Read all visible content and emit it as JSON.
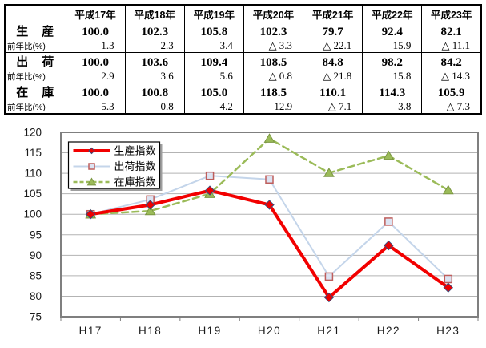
{
  "table": {
    "corner_label": "",
    "year_headers": [
      "平成17年",
      "平成18年",
      "平成19年",
      "平成20年",
      "平成21年",
      "平成22年",
      "平成23年"
    ],
    "yoy_label": "前年比(%)",
    "rows": [
      {
        "label": "生　産",
        "values": [
          "100.0",
          "102.3",
          "105.8",
          "102.3",
          "79.7",
          "92.4",
          "82.1"
        ],
        "yoy": [
          "1.3",
          "2.3",
          "3.4",
          "△ 3.3",
          "△ 22.1",
          "15.9",
          "△ 11.1"
        ]
      },
      {
        "label": "出　荷",
        "values": [
          "100.0",
          "103.6",
          "109.4",
          "108.5",
          "84.8",
          "98.2",
          "84.2"
        ],
        "yoy": [
          "2.9",
          "3.6",
          "5.6",
          "△ 0.8",
          "△ 21.8",
          "15.8",
          "△ 14.3"
        ]
      },
      {
        "label": "在　庫",
        "values": [
          "100.0",
          "100.8",
          "105.0",
          "118.5",
          "110.1",
          "114.3",
          "105.9"
        ],
        "yoy": [
          "5.3",
          "0.8",
          "4.2",
          "12.9",
          "△ 7.1",
          "3.8",
          "△ 7.3"
        ]
      }
    ]
  },
  "chart_data": {
    "type": "line",
    "title": "",
    "xlabel": "",
    "ylabel": "",
    "categories": [
      "H17",
      "H18",
      "H19",
      "H20",
      "H21",
      "H22",
      "H23"
    ],
    "series": [
      {
        "name": "生産指数",
        "values": [
          100.0,
          102.3,
          105.8,
          102.3,
          79.7,
          92.4,
          82.1
        ],
        "color": "#F20000",
        "line_width": 4,
        "dash": "",
        "marker": "diamond",
        "marker_fill": "#EE0000",
        "marker_stroke": "#3A4A7A",
        "z": 3
      },
      {
        "name": "出荷指数",
        "values": [
          100.0,
          103.6,
          109.4,
          108.5,
          84.8,
          98.2,
          84.2
        ],
        "color": "#C4D5EA",
        "line_width": 2,
        "dash": "",
        "marker": "square",
        "marker_fill": "#DCE3F2",
        "marker_stroke": "#BE5E5C",
        "z": 1
      },
      {
        "name": "在庫指数",
        "values": [
          100.0,
          100.8,
          105.0,
          118.5,
          110.1,
          114.3,
          105.9
        ],
        "color": "#9BBB59",
        "line_width": 2.5,
        "dash": "8 5",
        "marker": "triangle",
        "marker_fill": "#9BBB59",
        "marker_stroke": "#7A9640",
        "z": 2
      }
    ],
    "ylim": [
      75,
      120
    ],
    "ytick_step": 5,
    "grid": true,
    "grid_color": "#B3B3B3",
    "border_color": "#7F7F7F",
    "axis_text_color": "#1A1A1A",
    "legend_position": "top-left-inside",
    "legend_border_color": "#000000",
    "legend_shadow_color": "#9E9E9E"
  }
}
